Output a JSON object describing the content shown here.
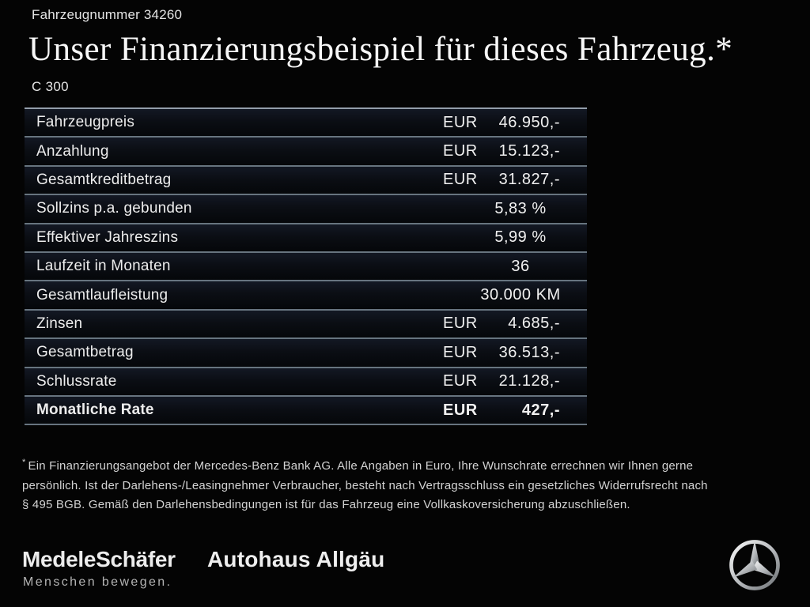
{
  "header": {
    "vehicle_number": "Fahrzeugnummer 34260",
    "title": "Unser Finanzierungsbeispiel für dieses Fahrzeug.*",
    "model": "C 300"
  },
  "table": {
    "rows": [
      {
        "label": "Fahrzeugpreis",
        "currency": "EUR",
        "value": "46.950,-",
        "bold": false
      },
      {
        "label": "Anzahlung",
        "currency": "EUR",
        "value": "15.123,-",
        "bold": false
      },
      {
        "label": "Gesamtkreditbetrag",
        "currency": "EUR",
        "value": "31.827,-",
        "bold": false
      },
      {
        "label": "Sollzins p.a. gebunden",
        "currency": "",
        "value": "5,83 %",
        "bold": false
      },
      {
        "label": "Effektiver Jahreszins",
        "currency": "",
        "value": "5,99 %",
        "bold": false
      },
      {
        "label": "Laufzeit in Monaten",
        "currency": "",
        "value": "36",
        "bold": false
      },
      {
        "label": "Gesamtlaufleistung",
        "currency": "",
        "value": "30.000 KM",
        "bold": false
      },
      {
        "label": "Zinsen",
        "currency": "EUR",
        "value": "4.685,-",
        "bold": false
      },
      {
        "label": "Gesamtbetrag",
        "currency": "EUR",
        "value": "36.513,-",
        "bold": false
      },
      {
        "label": "Schlussrate",
        "currency": "EUR",
        "value": "21.128,-",
        "bold": false
      },
      {
        "label": "Monatliche Rate",
        "currency": "EUR",
        "value": "427,-",
        "bold": true
      }
    ]
  },
  "footnote": {
    "marker": "*",
    "text": "Ein Finanzierungsangebot der Mercedes-Benz Bank AG. Alle Angaben in Euro, Ihre Wunschrate errechnen wir Ihnen gerne\npersönlich. Ist der Darlehens-/Leasingnehmer Verbraucher, besteht nach Vertragsschluss ein gesetzliches Widerrufsrecht nach\n§ 495 BGB. Gemäß den Darlehensbedingungen ist für das Fahrzeug eine Vollkaskoversicherung abzuschließen."
  },
  "footer": {
    "dealer_primary": {
      "name": "MedeleSchäfer",
      "tagline": "Menschen bewegen."
    },
    "dealer_secondary": {
      "name": "Autohaus Allgäu"
    },
    "brand_icon": "mercedes-star-icon"
  },
  "colors": {
    "background": "#040404",
    "row_background_top": "#131824",
    "row_background_bottom": "#05070a",
    "divider": "#67747f",
    "table_top_line": "#939daa",
    "text_primary": "#f1f1f1",
    "text_footnote": "#d3d3d3",
    "logo_silver_light": "#f8f8f8",
    "logo_silver_dark": "#6e7276"
  }
}
